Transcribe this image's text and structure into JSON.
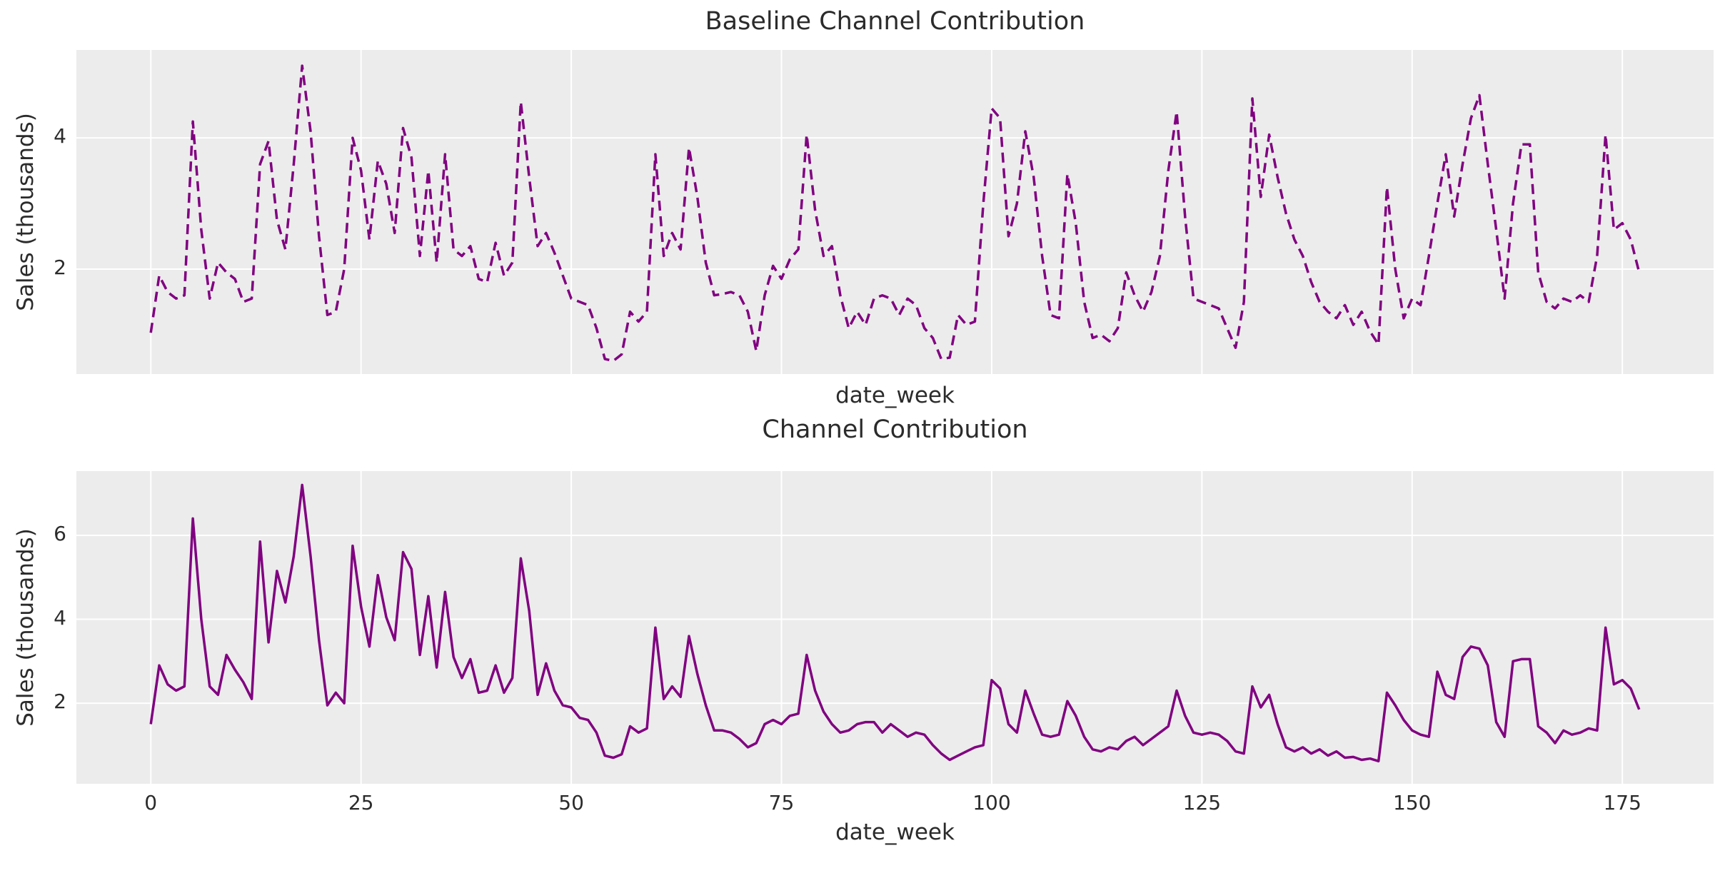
{
  "figure": {
    "background_color": "#ffffff",
    "panel_color": "#ececec",
    "grid_color": "#ffffff",
    "text_color": "#2b2b2b",
    "accent_line_color": "#800080"
  },
  "chart_data": [
    {
      "type": "line",
      "title": "Baseline Channel Contribution",
      "xlabel": "date_week",
      "ylabel": "Sales (thousands)",
      "legend": "none",
      "grid": "on",
      "line_style": "dashed",
      "line_color": "#800080",
      "x_start": 0,
      "x_step": 1,
      "x_gridlines": [
        0,
        25,
        50,
        75,
        100,
        125,
        150,
        175
      ],
      "x_tick_labels": [],
      "y_tick_labels": [
        2,
        4
      ],
      "axis": {
        "xlim": [
          -8.85,
          185.85
        ],
        "ylim": [
          0.4,
          5.34
        ]
      },
      "values": [
        1.03,
        1.9,
        1.65,
        1.55,
        1.6,
        4.25,
        2.6,
        1.55,
        2.1,
        1.95,
        1.85,
        1.5,
        1.55,
        3.6,
        3.95,
        2.75,
        2.3,
        3.6,
        5.1,
        4.1,
        2.5,
        1.3,
        1.35,
        2.0,
        4.0,
        3.5,
        2.45,
        3.65,
        3.3,
        2.55,
        4.15,
        3.7,
        2.2,
        3.5,
        2.1,
        3.75,
        2.3,
        2.2,
        2.35,
        1.85,
        1.8,
        2.4,
        1.9,
        2.1,
        4.55,
        3.4,
        2.35,
        2.55,
        2.25,
        1.9,
        1.55,
        1.5,
        1.45,
        1.1,
        0.63,
        0.6,
        0.7,
        1.35,
        1.2,
        1.35,
        3.75,
        2.2,
        2.55,
        2.3,
        3.85,
        3.1,
        2.1,
        1.6,
        1.62,
        1.65,
        1.6,
        1.35,
        0.75,
        1.6,
        2.05,
        1.85,
        2.15,
        2.3,
        4.05,
        2.9,
        2.2,
        2.35,
        1.6,
        1.1,
        1.35,
        1.15,
        1.55,
        1.6,
        1.55,
        1.3,
        1.55,
        1.45,
        1.1,
        0.95,
        0.63,
        0.65,
        1.3,
        1.15,
        1.2,
        3.0,
        4.45,
        4.3,
        2.5,
        3.0,
        4.1,
        3.4,
        2.2,
        1.3,
        1.25,
        3.45,
        2.7,
        1.5,
        0.95,
        1.0,
        0.9,
        1.1,
        1.95,
        1.6,
        1.35,
        1.65,
        2.2,
        3.5,
        4.4,
        2.8,
        1.55,
        1.5,
        1.45,
        1.4,
        1.1,
        0.8,
        1.5,
        4.6,
        3.1,
        4.05,
        3.4,
        2.85,
        2.45,
        2.2,
        1.8,
        1.5,
        1.35,
        1.25,
        1.45,
        1.15,
        1.35,
        1.05,
        0.85,
        3.25,
        2.0,
        1.25,
        1.55,
        1.45,
        2.2,
        3.0,
        3.75,
        2.8,
        3.6,
        4.3,
        4.65,
        3.6,
        2.6,
        1.55,
        3.0,
        3.9,
        3.9,
        1.95,
        1.5,
        1.4,
        1.55,
        1.5,
        1.6,
        1.5,
        2.2,
        4.05,
        2.6,
        2.7,
        2.45,
        1.95
      ]
    },
    {
      "type": "line",
      "title": "Channel Contribution",
      "xlabel": "date_week",
      "ylabel": "Sales (thousands)",
      "legend": "none",
      "grid": "on",
      "line_style": "solid",
      "line_color": "#800080",
      "x_start": 0,
      "x_step": 1,
      "x_gridlines": [
        0,
        25,
        50,
        75,
        100,
        125,
        150,
        175
      ],
      "x_tick_labels": [
        0,
        25,
        50,
        75,
        100,
        125,
        150,
        175
      ],
      "y_tick_labels": [
        2,
        4,
        6
      ],
      "axis": {
        "xlim": [
          -8.85,
          185.85
        ],
        "ylim": [
          0.08,
          7.53
        ]
      },
      "values": [
        1.5,
        2.9,
        2.45,
        2.3,
        2.4,
        6.4,
        4.0,
        2.4,
        2.2,
        3.15,
        2.8,
        2.5,
        2.1,
        5.85,
        3.45,
        5.15,
        4.4,
        5.5,
        7.2,
        5.5,
        3.5,
        1.95,
        2.25,
        2.0,
        5.75,
        4.3,
        3.35,
        5.05,
        4.05,
        3.5,
        5.6,
        5.2,
        3.15,
        4.55,
        2.85,
        4.65,
        3.1,
        2.6,
        3.05,
        2.25,
        2.3,
        2.9,
        2.25,
        2.6,
        5.45,
        4.2,
        2.2,
        2.95,
        2.3,
        1.95,
        1.9,
        1.65,
        1.6,
        1.3,
        0.75,
        0.7,
        0.78,
        1.45,
        1.3,
        1.4,
        3.8,
        2.1,
        2.4,
        2.15,
        3.6,
        2.7,
        1.95,
        1.35,
        1.35,
        1.3,
        1.15,
        0.95,
        1.05,
        1.5,
        1.6,
        1.5,
        1.7,
        1.75,
        3.15,
        2.3,
        1.8,
        1.5,
        1.3,
        1.35,
        1.5,
        1.55,
        1.55,
        1.3,
        1.5,
        1.35,
        1.2,
        1.3,
        1.25,
        1.0,
        0.8,
        0.65,
        0.75,
        0.85,
        0.95,
        1.0,
        2.55,
        2.35,
        1.5,
        1.3,
        2.3,
        1.75,
        1.25,
        1.2,
        1.25,
        2.05,
        1.7,
        1.2,
        0.9,
        0.85,
        0.95,
        0.9,
        1.1,
        1.2,
        1.0,
        1.15,
        1.3,
        1.45,
        2.3,
        1.7,
        1.3,
        1.25,
        1.3,
        1.25,
        1.1,
        0.85,
        0.8,
        2.4,
        1.9,
        2.2,
        1.5,
        0.95,
        0.85,
        0.95,
        0.8,
        0.9,
        0.75,
        0.85,
        0.7,
        0.72,
        0.65,
        0.68,
        0.62,
        2.25,
        1.95,
        1.6,
        1.35,
        1.25,
        1.2,
        2.75,
        2.2,
        2.1,
        3.1,
        3.35,
        3.3,
        2.9,
        1.55,
        1.2,
        3.0,
        3.05,
        3.05,
        1.45,
        1.3,
        1.05,
        1.35,
        1.25,
        1.3,
        1.4,
        1.35,
        3.8,
        2.45,
        2.55,
        2.35,
        1.85
      ]
    }
  ]
}
